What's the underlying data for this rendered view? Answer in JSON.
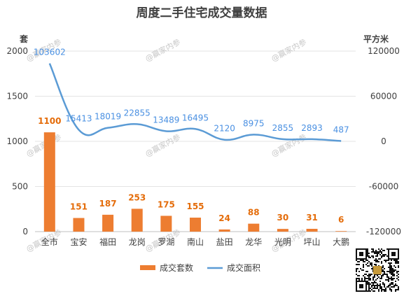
{
  "chart_data": {
    "type": "bar+line",
    "title": "周度二手住宅成交量数据",
    "left_axis_unit": "套",
    "right_axis_unit": "平方米",
    "categories": [
      "全市",
      "宝安",
      "福田",
      "龙岗",
      "罗湖",
      "南山",
      "盐田",
      "龙华",
      "光明",
      "坪山",
      "大鹏"
    ],
    "series": [
      {
        "name": "成交套数",
        "type": "bar",
        "axis": "left",
        "color": "#ED7D31",
        "values": [
          1100,
          151,
          187,
          253,
          175,
          155,
          24,
          88,
          30,
          31,
          6
        ]
      },
      {
        "name": "成交面积",
        "type": "line",
        "axis": "right",
        "color": "#5B9BD5",
        "values": [
          103602,
          15413,
          18019,
          22855,
          13489,
          16495,
          2120,
          8975,
          2855,
          2893,
          487
        ]
      }
    ],
    "left_axis": {
      "min": 0,
      "max": 2000,
      "ticks": [
        0,
        500,
        1000,
        1500,
        2000
      ]
    },
    "right_axis": {
      "min": -120000,
      "max": 120000,
      "ticks": [
        -120000,
        -60000,
        0,
        60000,
        120000
      ]
    },
    "grid": true,
    "legend_position": "bottom"
  },
  "watermark": "@赢家内参"
}
